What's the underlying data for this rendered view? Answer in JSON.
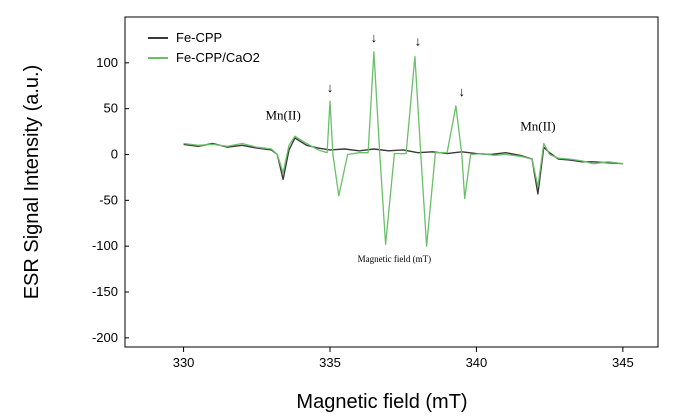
{
  "chart_data": {
    "type": "line",
    "title": "",
    "xlabel": "Magnetic field (mT)",
    "ylabel": "ESR Signal Intensity (a.u.)",
    "xlim": [
      328,
      346.2
    ],
    "ylim": [
      -210,
      150
    ],
    "xticks": [
      330,
      335,
      340,
      345
    ],
    "yticks": [
      100,
      50,
      0,
      -50,
      -100,
      -150,
      -200
    ],
    "grid": false,
    "legend_position": "top-left",
    "colors": {
      "Fe-CPP": "#3a3a3a",
      "Fe-CPP/CaO2": "#6abf69"
    },
    "series": [
      {
        "name": "Fe-CPP",
        "x": [
          330.0,
          330.5,
          331.0,
          331.5,
          332.0,
          332.5,
          333.0,
          333.2,
          333.4,
          333.6,
          333.8,
          334.2,
          334.6,
          335.0,
          335.5,
          336.0,
          336.5,
          337.0,
          337.5,
          338.0,
          338.5,
          339.0,
          339.5,
          340.0,
          340.5,
          341.0,
          341.5,
          341.9,
          342.1,
          342.3,
          342.5,
          342.8,
          343.2,
          343.6,
          344.0,
          344.5,
          345.0
        ],
        "y": [
          11,
          9,
          12,
          8,
          10,
          7,
          5,
          0,
          -27,
          5,
          18,
          10,
          7,
          5,
          6,
          4,
          6,
          4,
          5,
          2,
          3,
          1,
          3,
          1,
          0,
          2,
          -1,
          -5,
          -43,
          8,
          2,
          -5,
          -6,
          -8,
          -8,
          -9,
          -10
        ]
      },
      {
        "name": "Fe-CPP/CaO2",
        "x": [
          330.0,
          330.5,
          331.0,
          331.5,
          332.0,
          332.5,
          333.0,
          333.2,
          333.4,
          333.6,
          333.8,
          334.2,
          334.6,
          334.9,
          335.0,
          335.1,
          335.3,
          335.6,
          336.0,
          336.3,
          336.5,
          336.7,
          336.9,
          337.2,
          337.6,
          337.9,
          338.1,
          338.3,
          338.6,
          339.0,
          339.3,
          339.5,
          339.6,
          339.8,
          340.2,
          340.6,
          341.0,
          341.5,
          341.9,
          342.1,
          342.3,
          342.5,
          342.8,
          343.2,
          343.6,
          344.0,
          344.5,
          345.0
        ],
        "y": [
          12,
          10,
          11,
          9,
          12,
          8,
          6,
          0,
          -20,
          10,
          20,
          12,
          5,
          2,
          58,
          0,
          -45,
          0,
          2,
          2,
          112,
          0,
          -98,
          1,
          1,
          107,
          0,
          -100,
          2,
          2,
          53,
          0,
          -48,
          0,
          1,
          -1,
          0,
          -2,
          -5,
          -35,
          12,
          0,
          -4,
          -5,
          -7,
          -10,
          -8,
          -10
        ]
      }
    ],
    "annotations": [
      {
        "text": "Mn(II)",
        "x": 333.4,
        "y": 38
      },
      {
        "text": "Mn(II)",
        "x": 342.1,
        "y": 26
      },
      {
        "text": "↓",
        "x": 335.0,
        "y": 68
      },
      {
        "text": "↓",
        "x": 336.5,
        "y": 123
      },
      {
        "text": "↓",
        "x": 338.0,
        "y": 119
      },
      {
        "text": "↓",
        "x": 339.5,
        "y": 64
      },
      {
        "text": "Magnetic field (mT)",
        "x": 337.2,
        "y": -117
      }
    ]
  }
}
